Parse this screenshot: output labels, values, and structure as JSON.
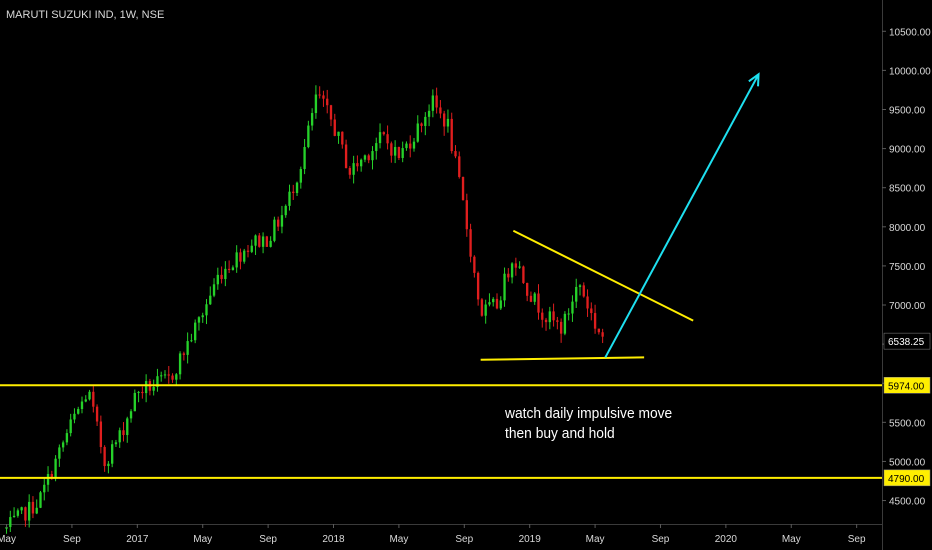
{
  "chart_data": {
    "type": "candlestick",
    "title": "MARUTI SUZUKI IND, 1W, NSE",
    "colors": {
      "background": "#000000",
      "up": "#26d12a",
      "down": "#e01e1e",
      "horizontal_levels": "#ffee00",
      "triangle": "#ffee00",
      "projection_arrow": "#1ee0f0",
      "axis_text": "#d9d9d9"
    },
    "x_axis": {
      "range": [
        "2016-05",
        "2020-10"
      ],
      "tick_labels": [
        "May",
        "Sep",
        "2017",
        "May",
        "Sep",
        "2018",
        "May",
        "Sep",
        "2019",
        "May",
        "Sep",
        "2020",
        "May",
        "Sep"
      ]
    },
    "y_axis": {
      "range": [
        4200,
        10900
      ],
      "position": "right",
      "tick_labels": [
        "4500.00",
        "5000.00",
        "5500.00",
        "6000.00",
        "6500.00",
        "7000.00",
        "7500.00",
        "8000.00",
        "8500.00",
        "9000.00",
        "9500.00",
        "10000.00",
        "10500.00"
      ]
    },
    "price_labels": {
      "last": "6538.25",
      "upper_level": "5974.00",
      "lower_level": "4790.00"
    },
    "support_levels": [
      5974,
      4790
    ],
    "price_anchors": [
      {
        "t": "2016-05",
        "p": 4140
      },
      {
        "t": "2016-07",
        "p": 4500
      },
      {
        "t": "2016-08",
        "p": 5000
      },
      {
        "t": "2016-09",
        "p": 5500
      },
      {
        "t": "2016-10",
        "p": 5900
      },
      {
        "t": "2016-11",
        "p": 5000
      },
      {
        "t": "2016-12",
        "p": 5350
      },
      {
        "t": "2017-01",
        "p": 5900
      },
      {
        "t": "2017-03",
        "p": 6050
      },
      {
        "t": "2017-05",
        "p": 6900
      },
      {
        "t": "2017-06",
        "p": 7400
      },
      {
        "t": "2017-08",
        "p": 7800
      },
      {
        "t": "2017-09",
        "p": 7850
      },
      {
        "t": "2017-10",
        "p": 8200
      },
      {
        "t": "2017-11",
        "p": 8800
      },
      {
        "t": "2017-12",
        "p": 9700
      },
      {
        "t": "2018-01",
        "p": 9300
      },
      {
        "t": "2018-02",
        "p": 8700
      },
      {
        "t": "2018-04",
        "p": 9150
      },
      {
        "t": "2018-05",
        "p": 8900
      },
      {
        "t": "2018-06",
        "p": 9200
      },
      {
        "t": "2018-07",
        "p": 9600
      },
      {
        "t": "2018-08",
        "p": 9300
      },
      {
        "t": "2018-09",
        "p": 8200
      },
      {
        "t": "2018-10",
        "p": 6900
      },
      {
        "t": "2018-11",
        "p": 7000
      },
      {
        "t": "2018-12",
        "p": 7650
      },
      {
        "t": "2019-01",
        "p": 7150
      },
      {
        "t": "2019-02",
        "p": 6850
      },
      {
        "t": "2019-03",
        "p": 6700
      },
      {
        "t": "2019-04",
        "p": 7300
      },
      {
        "t": "2019-05",
        "p": 6750
      },
      {
        "t": "2019-05-20",
        "p": 6538
      }
    ],
    "drawings": {
      "triangle_upper": [
        {
          "t": "2018-12",
          "p": 7950
        },
        {
          "t": "2019-11",
          "p": 6800
        }
      ],
      "triangle_lower": [
        {
          "t": "2018-10",
          "p": 6300
        },
        {
          "t": "2019-08",
          "p": 6330
        }
      ],
      "arrow": [
        {
          "t": "2019-05-20",
          "p": 6330
        },
        {
          "t": "2020-03",
          "p": 9950
        }
      ]
    },
    "annotation": [
      "watch daily impulsive move",
      "then buy and hold"
    ]
  }
}
